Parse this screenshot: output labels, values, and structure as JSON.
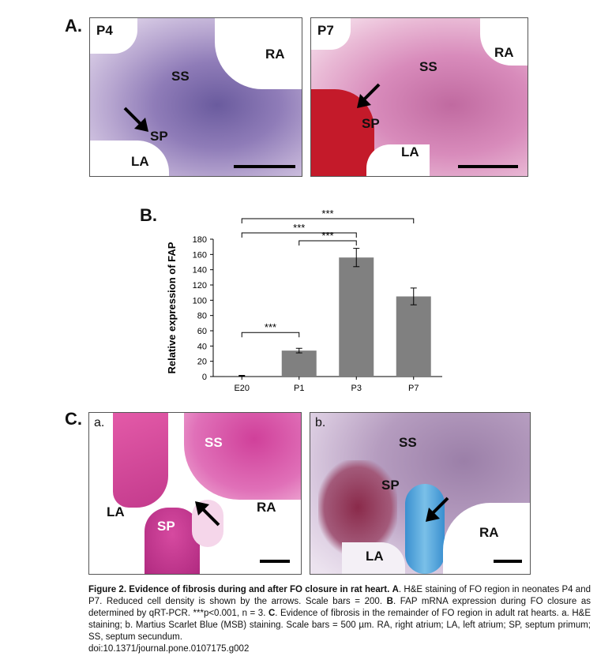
{
  "panelA": {
    "letter": "A.",
    "p4": {
      "title": "P4",
      "labels": {
        "ss": "SS",
        "ra": "RA",
        "sp": "SP",
        "la": "LA"
      }
    },
    "p7": {
      "title": "P7",
      "labels": {
        "ss": "SS",
        "ra": "RA",
        "sp": "SP",
        "la": "LA"
      }
    }
  },
  "panelB": {
    "letter": "B."
  },
  "panelC": {
    "letter": "C.",
    "a": {
      "title": "a.",
      "labels": {
        "ss": "SS",
        "la": "LA",
        "ra": "RA",
        "sp": "SP"
      }
    },
    "b": {
      "title": "b.",
      "labels": {
        "ss": "SS",
        "sp": "SP",
        "ra": "RA",
        "la": "LA"
      }
    }
  },
  "chart_data": {
    "type": "bar",
    "categories": [
      "E20",
      "P1",
      "P3",
      "P7"
    ],
    "values": [
      1,
      34,
      156,
      105
    ],
    "errors": [
      0.5,
      3,
      12,
      11
    ],
    "ylabel": "Relative expression of FAP",
    "ylim": [
      0,
      180
    ],
    "yticks": [
      0,
      20,
      40,
      60,
      80,
      100,
      120,
      140,
      160,
      180
    ],
    "bar_color": "#808080",
    "significance": [
      {
        "from": "E20",
        "to": "P7",
        "label": "***"
      },
      {
        "from": "E20",
        "to": "P3",
        "label": "***"
      },
      {
        "from": "P1",
        "to": "P3",
        "label": "***"
      },
      {
        "from": "E20",
        "to": "P1",
        "label": "***"
      }
    ]
  },
  "caption": {
    "fig_label": "Figure 2. Evidence of fibrosis during and after FO closure in rat heart.",
    "a_label": "A",
    "a_text": ". H&E staining of FO region in neonates P4 and P7. Reduced cell density is shown by the arrows. Scale bars = 200.",
    "b_label": "B",
    "b_text": ". FAP mRNA expression during FO closure as determined by qRT-PCR. ***p<0.001, n = 3.",
    "c_label": "C",
    "c_text": ". Evidence of fibrosis in the remainder of FO region in adult rat hearts. a. H&E staining; b. Martius Scarlet Blue (MSB) staining. Scale bars = 500 µm. RA, right atrium; LA, left atrium; SP, septum primum; SS, septum secundum.",
    "doi": "doi:10.1371/journal.pone.0107175.g002"
  }
}
